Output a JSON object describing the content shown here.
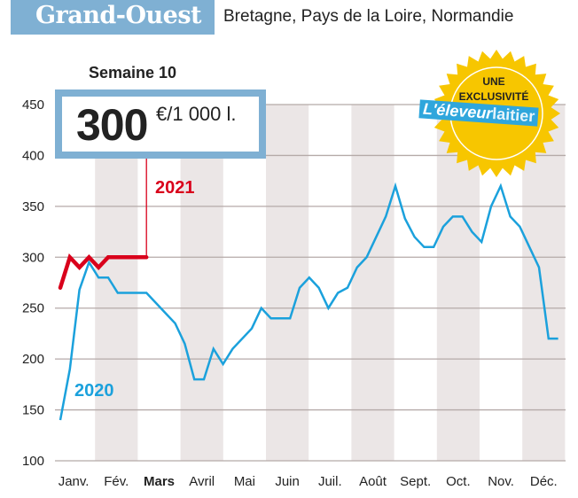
{
  "header": {
    "title": "Grand-Ouest",
    "subtitle": "Bretagne, Pays de la Loire, Normandie"
  },
  "callout": {
    "week": "Semaine 10",
    "value": "300",
    "unit": "€/1 000 l."
  },
  "badge": {
    "line1": "UNE",
    "line2": "EXCLUSIVITÉ",
    "brand_part1": "L'éleveur",
    "brand_part2": "laitier"
  },
  "colors": {
    "accent": "#7fb0d3",
    "series_2020": "#1ba1dc",
    "series_2021": "#d9001b",
    "badge": "#f7c600",
    "stripe": "#ebe6e6"
  },
  "chart_data": {
    "type": "line",
    "ylim": [
      100,
      450
    ],
    "yticks": [
      "100",
      "150",
      "200",
      "250",
      "300",
      "350",
      "400",
      "450"
    ],
    "months": [
      "Janv.",
      "Fév.",
      "Mars",
      "Avril",
      "Mai",
      "Juin",
      "Juil.",
      "Août",
      "Sept.",
      "Oct.",
      "Nov.",
      "Déc."
    ],
    "highlight_month": "Mars",
    "grid": true,
    "series": [
      {
        "name": "2020",
        "x_unit": "week",
        "values": [
          140,
          190,
          268,
          295,
          280,
          280,
          265,
          265,
          265,
          265,
          255,
          245,
          235,
          215,
          180,
          180,
          210,
          195,
          210,
          220,
          230,
          250,
          240,
          240,
          240,
          270,
          280,
          270,
          250,
          265,
          270,
          290,
          300,
          320,
          340,
          370,
          338,
          320,
          310,
          310,
          330,
          340,
          340,
          325,
          315,
          350,
          370,
          340,
          330,
          310,
          290,
          220,
          220
        ]
      },
      {
        "name": "2021",
        "x_unit": "week",
        "values": [
          270,
          300,
          290,
          300,
          290,
          300,
          300,
          300,
          300,
          300
        ]
      }
    ]
  }
}
